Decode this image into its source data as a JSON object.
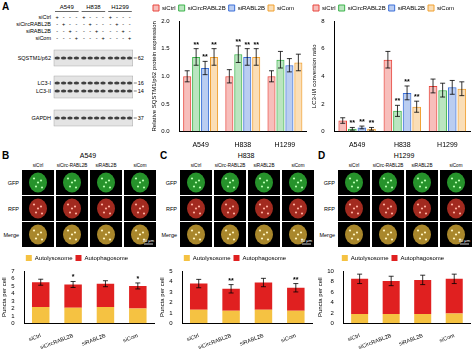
{
  "panels": [
    "A",
    "B",
    "C",
    "D"
  ],
  "blot": {
    "cell_lines": [
      "A549",
      "H838",
      "H1299"
    ],
    "conditions": [
      {
        "name": "siCtrl",
        "signs": [
          "+",
          "-",
          "-",
          "-"
        ]
      },
      {
        "name": "siCircRABL2B",
        "signs": [
          "-",
          "+",
          "-",
          "-"
        ]
      },
      {
        "name": "siRABL2B",
        "signs": [
          "-",
          "-",
          "+",
          "-"
        ]
      },
      {
        "name": "siCom",
        "signs": [
          "-",
          "-",
          "-",
          "+"
        ]
      }
    ],
    "bands": [
      {
        "name": "SQSTM1/p62",
        "mw": 62
      },
      {
        "name": "LC3-I",
        "mw": 16
      },
      {
        "name": "LC3-II",
        "mw": 14
      },
      {
        "name": "GAPDH",
        "mw": 37
      }
    ]
  },
  "microscopy": [
    {
      "cell_line": "A549",
      "columns": [
        "siCtrl",
        "siCirc-RABL2B",
        "siRABL2B",
        "siCom"
      ],
      "rows": [
        "GFP",
        "RFP",
        "Merge"
      ],
      "scale_bar": "10 μm"
    },
    {
      "cell_line": "H838",
      "columns": [
        "siCtrl",
        "siCirc-RABL2B",
        "siRABL2B",
        "siCom"
      ],
      "rows": [
        "GFP",
        "RFP",
        "Merge"
      ],
      "scale_bar": "10 μm"
    },
    {
      "cell_line": "H1299",
      "columns": [
        "siCtrl",
        "siCirc-RABL2B",
        "siRABL2B",
        "siCom"
      ],
      "rows": [
        "GFP",
        "RFP",
        "Merge"
      ],
      "scale_bar": "10 μm"
    }
  ],
  "chart_data": [
    {
      "type": "bar",
      "y_label": "Relative SQSTM1/p62 protein expression",
      "categories": [
        "A549",
        "H838",
        "H1299"
      ],
      "series": [
        {
          "name": "siCtrl",
          "color": "#e8453c",
          "values": [
            1.0,
            1.0,
            1.0
          ],
          "errors": [
            0.1,
            0.12,
            0.1
          ],
          "significance": [
            null,
            null,
            null
          ]
        },
        {
          "name": "siCircRABL2B",
          "color": "#3cb44b",
          "values": [
            1.35,
            1.4,
            1.3
          ],
          "errors": [
            0.15,
            0.15,
            0.15
          ],
          "significance": [
            "**",
            "**",
            null
          ]
        },
        {
          "name": "siRABL2B",
          "color": "#3a6fd8",
          "values": [
            1.15,
            1.35,
            1.2
          ],
          "errors": [
            0.12,
            0.15,
            0.12
          ],
          "significance": [
            "**",
            "**",
            null
          ]
        },
        {
          "name": "siCom",
          "color": "#f0a030",
          "values": [
            1.35,
            1.35,
            1.25
          ],
          "errors": [
            0.15,
            0.15,
            0.15
          ],
          "significance": [
            "**",
            "**",
            null
          ]
        }
      ],
      "ylim": [
        0,
        2
      ],
      "yticks": [
        {
          "value": 0,
          "label": "0.0"
        },
        {
          "value": 0.5,
          "label": "0.5"
        },
        {
          "value": 1,
          "label": "1.0"
        },
        {
          "value": 1.5,
          "label": "1.5"
        },
        {
          "value": 2,
          "label": "2.0"
        }
      ],
      "grid": false,
      "legend": "top-left"
    },
    {
      "type": "bar",
      "y_label": "LC3-II/I conversion ratio",
      "categories": [
        "A549",
        "H838",
        "H1299"
      ],
      "series": [
        {
          "name": "siCtrl",
          "color": "#e8453c",
          "values": [
            0.8,
            5.2,
            3.3
          ],
          "errors": [
            0.2,
            0.6,
            0.5
          ],
          "significance": [
            null,
            null,
            null
          ]
        },
        {
          "name": "siCircRABL2B",
          "color": "#3cb44b",
          "values": [
            0.2,
            1.5,
            3.0
          ],
          "errors": [
            0.1,
            0.4,
            0.5
          ],
          "significance": [
            "**",
            "**",
            null
          ]
        },
        {
          "name": "siRABL2B",
          "color": "#3a6fd8",
          "values": [
            0.3,
            2.8,
            3.2
          ],
          "errors": [
            0.1,
            0.5,
            0.5
          ],
          "significance": [
            "**",
            "**",
            null
          ]
        },
        {
          "name": "siCom",
          "color": "#f0a030",
          "values": [
            0.2,
            1.8,
            3.1
          ],
          "errors": [
            0.1,
            0.4,
            0.5
          ],
          "significance": [
            "**",
            "**",
            null
          ]
        }
      ],
      "ylim": [
        0,
        8
      ],
      "yticks": [
        0,
        2,
        4,
        6,
        8
      ],
      "grid": false,
      "legend": "top-left"
    },
    {
      "type": "bar",
      "stacked": true,
      "y_label": "Puncta per cell",
      "categories": [
        "siCtrl",
        "siCircRABL2B",
        "siRABL2B",
        "siCom"
      ],
      "series": [
        {
          "name": "Autolysosome",
          "color": "#f5c242",
          "values": [
            2.2,
            2.1,
            2.2,
            2.0
          ]
        },
        {
          "name": "Autophagosome",
          "color": "#e02020",
          "values": [
            3.3,
            3.1,
            3.1,
            3.0
          ],
          "errors": [
            0.4,
            0.4,
            0.4,
            0.4
          ],
          "significance": [
            null,
            "*",
            null,
            "*"
          ]
        }
      ],
      "ylim": [
        0,
        7
      ],
      "yticks": [
        0,
        1,
        2,
        3,
        4,
        5,
        6,
        7
      ],
      "grid": false,
      "legend": "top"
    },
    {
      "type": "bar",
      "stacked": true,
      "y_label": "Puncta per cell",
      "categories": [
        "siCtrl",
        "siCircRABL2B",
        "siRABL2B",
        "siCom"
      ],
      "series": [
        {
          "name": "Autolysosome",
          "color": "#f5c242",
          "values": [
            1.3,
            1.2,
            1.3,
            1.2
          ]
        },
        {
          "name": "Autophagosome",
          "color": "#e02020",
          "values": [
            2.5,
            2.1,
            2.6,
            2.2
          ],
          "errors": [
            0.4,
            0.4,
            0.4,
            0.4
          ],
          "significance": [
            null,
            "**",
            null,
            "**"
          ]
        }
      ],
      "ylim": [
        0,
        5
      ],
      "yticks": [
        0,
        1,
        2,
        3,
        4,
        5
      ],
      "grid": false,
      "legend": "top"
    },
    {
      "type": "bar",
      "stacked": true,
      "y_label": "Puncta per cell",
      "categories": [
        "siCtrl",
        "siCircRABL2B",
        "siRABL2B",
        "siCom"
      ],
      "series": [
        {
          "name": "Autolysosome",
          "color": "#f5c242",
          "values": [
            1.8,
            1.8,
            1.8,
            1.9
          ]
        },
        {
          "name": "Autophagosome",
          "color": "#e02020",
          "values": [
            6.7,
            6.3,
            6.5,
            6.6
          ],
          "errors": [
            0.9,
            0.9,
            0.9,
            0.9
          ],
          "significance": [
            null,
            null,
            null,
            null
          ]
        }
      ],
      "ylim": [
        0,
        10
      ],
      "yticks": [
        0,
        2,
        4,
        6,
        8,
        10
      ],
      "grid": false,
      "legend": "top"
    }
  ]
}
